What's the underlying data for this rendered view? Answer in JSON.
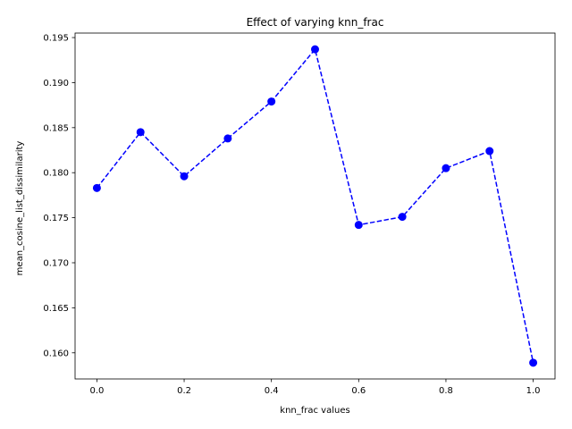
{
  "chart_data": {
    "type": "line",
    "title": "Effect of varying knn_frac",
    "xlabel": "knn_frac values",
    "ylabel": "mean_cosine_list_dissimilarity",
    "xlim": [
      -0.05,
      1.05
    ],
    "ylim": [
      0.1571,
      0.1955
    ],
    "xticks": [
      0.0,
      0.2,
      0.4,
      0.6,
      0.8,
      1.0
    ],
    "xtick_labels": [
      "0.0",
      "0.2",
      "0.4",
      "0.6",
      "0.8",
      "1.0"
    ],
    "yticks": [
      0.16,
      0.165,
      0.17,
      0.175,
      0.18,
      0.185,
      0.19,
      0.195
    ],
    "ytick_labels": [
      "0.160",
      "0.165",
      "0.170",
      "0.175",
      "0.180",
      "0.185",
      "0.190",
      "0.195"
    ],
    "grid": false,
    "series": [
      {
        "x": [
          0.0,
          0.1,
          0.2,
          0.3,
          0.4,
          0.5,
          0.6,
          0.7,
          0.8,
          0.9,
          1.0
        ],
        "values": [
          0.1783,
          0.1845,
          0.1796,
          0.1838,
          0.1879,
          0.1937,
          0.1742,
          0.1751,
          0.1805,
          0.1824,
          0.1589
        ],
        "color": "#0000ff",
        "line_style": "dashed",
        "marker": "circle"
      }
    ]
  }
}
